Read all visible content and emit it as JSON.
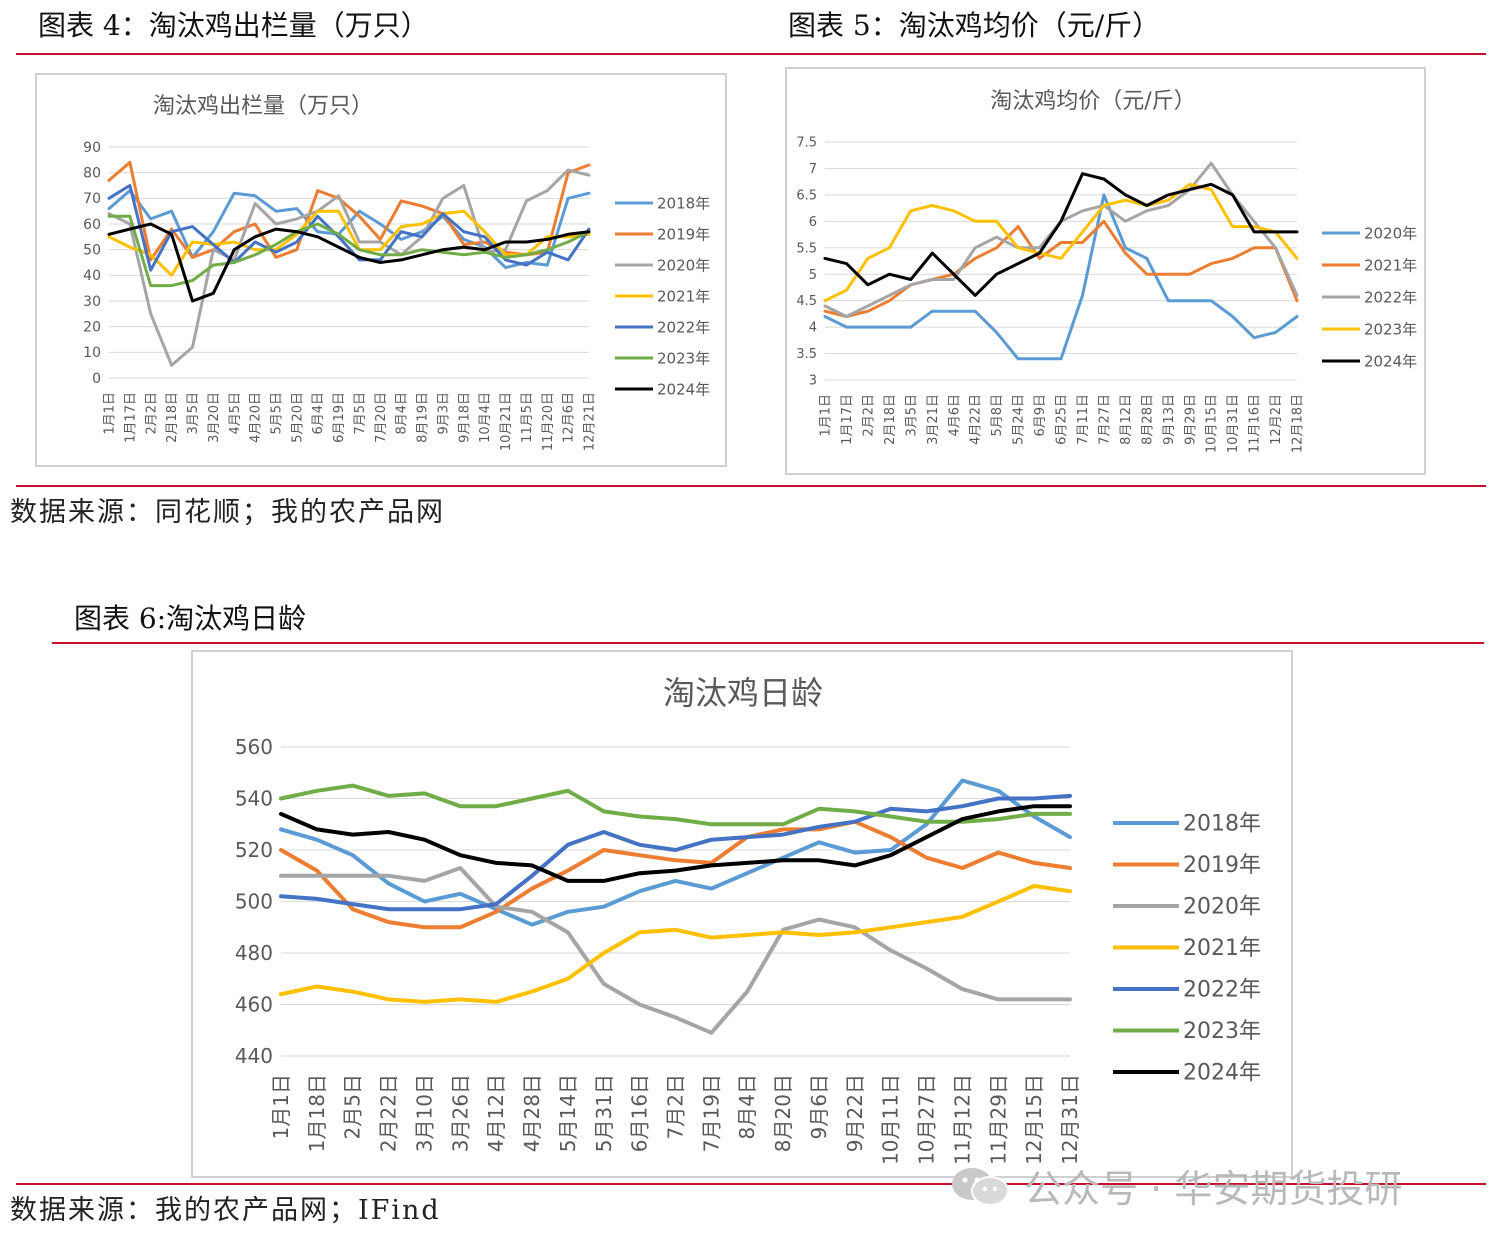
{
  "figures": {
    "fig4": {
      "caption": "图表 4：淘汰鸡出栏量（万只）"
    },
    "fig5": {
      "caption": "图表 5：淘汰鸡均价（元/斤）"
    },
    "fig6": {
      "caption": "图表 6:淘汰鸡日龄"
    }
  },
  "sources": {
    "top": "数据来源：同花顺；我的农产品网",
    "bottom": "数据来源：我的农产品网；IFind"
  },
  "watermark": {
    "text": "公众号 · 华安期货投研",
    "icon": "wechat-icon"
  },
  "chart_data": [
    {
      "id": "chart4",
      "type": "line",
      "title": "淘汰鸡出栏量（万只）",
      "ylim": [
        0,
        90
      ],
      "y_ticks": [
        0,
        10,
        20,
        30,
        40,
        50,
        60,
        70,
        80,
        90
      ],
      "x_labels": [
        "1月1日",
        "1月17日",
        "2月2日",
        "2月18日",
        "3月5日",
        "3月20日",
        "4月5日",
        "4月20日",
        "5月5日",
        "5月20日",
        "6月4日",
        "6月19日",
        "7月5日",
        "7月20日",
        "8月4日",
        "8月19日",
        "9月3日",
        "9月18日",
        "10月4日",
        "10月21日",
        "11月5日",
        "11月20日",
        "12月6日",
        "12月21日"
      ],
      "legend_position": "right",
      "grid": true,
      "series": [
        {
          "name": "2018年",
          "color": "#5b9bd5",
          "values": [
            66,
            73,
            62,
            65,
            47,
            57,
            72,
            71,
            65,
            66,
            57,
            56,
            65,
            60,
            54,
            57,
            63,
            54,
            51,
            43,
            45,
            44,
            70,
            72
          ]
        },
        {
          "name": "2019年",
          "color": "#ed7d31",
          "values": [
            77,
            84,
            46,
            58,
            47,
            50,
            57,
            60,
            47,
            50,
            73,
            70,
            63,
            54,
            69,
            67,
            64,
            52,
            53,
            49,
            48,
            49,
            80,
            83
          ]
        },
        {
          "name": "2020年",
          "color": "#a5a5a5",
          "values": [
            64,
            60,
            25,
            5,
            12,
            50,
            46,
            68,
            60,
            62,
            65,
            71,
            53,
            53,
            48,
            55,
            70,
            75,
            49,
            50,
            69,
            73,
            81,
            79
          ]
        },
        {
          "name": "2021年",
          "color": "#ffc000",
          "values": [
            55,
            51,
            48,
            40,
            53,
            52,
            53,
            50,
            50,
            56,
            65,
            65,
            50,
            50,
            59,
            60,
            64,
            65,
            57,
            48,
            48,
            55,
            55,
            56
          ]
        },
        {
          "name": "2022年",
          "color": "#4472c4",
          "values": [
            70,
            75,
            42,
            57,
            59,
            52,
            45,
            53,
            49,
            53,
            63,
            55,
            46,
            46,
            57,
            55,
            64,
            57,
            55,
            46,
            44,
            49,
            46,
            58
          ]
        },
        {
          "name": "2023年",
          "color": "#70ad47",
          "values": [
            63,
            63,
            36,
            36,
            38,
            44,
            45,
            48,
            52,
            57,
            60,
            56,
            50,
            48,
            48,
            50,
            49,
            48,
            49,
            47,
            48,
            50,
            53,
            57
          ]
        },
        {
          "name": "2024年",
          "color": "#000000",
          "values": [
            56,
            58,
            60,
            56,
            30,
            33,
            50,
            55,
            58,
            57,
            55,
            51,
            47,
            45,
            46,
            48,
            50,
            51,
            50,
            53,
            53,
            54,
            56,
            57
          ]
        }
      ]
    },
    {
      "id": "chart5",
      "type": "line",
      "title": "淘汰鸡均价（元/斤）",
      "ylim": [
        3,
        7.5
      ],
      "y_ticks": [
        3,
        3.5,
        4,
        4.5,
        5,
        5.5,
        6,
        6.5,
        7,
        7.5
      ],
      "x_labels": [
        "1月1日",
        "1月17日",
        "2月2日",
        "2月18日",
        "3月5日",
        "3月21日",
        "4月6日",
        "4月22日",
        "5月8日",
        "5月24日",
        "6月9日",
        "6月25日",
        "7月11日",
        "7月27日",
        "8月12日",
        "8月28日",
        "9月13日",
        "9月29日",
        "10月15日",
        "10月31日",
        "11月16日",
        "12月2日",
        "12月18日"
      ],
      "legend_position": "right",
      "grid": true,
      "series": [
        {
          "name": "2020年",
          "color": "#5b9bd5",
          "values": [
            4.2,
            4.0,
            4.0,
            4.0,
            4.0,
            4.3,
            4.3,
            4.3,
            3.9,
            3.4,
            3.4,
            3.4,
            4.6,
            6.5,
            5.5,
            5.3,
            4.5,
            4.5,
            4.5,
            4.2,
            3.8,
            3.9,
            4.2
          ]
        },
        {
          "name": "2021年",
          "color": "#ed7d31",
          "values": [
            4.3,
            4.2,
            4.3,
            4.5,
            4.8,
            4.9,
            5.0,
            5.3,
            5.5,
            5.9,
            5.3,
            5.6,
            5.6,
            6.0,
            5.4,
            5.0,
            5.0,
            5.0,
            5.2,
            5.3,
            5.5,
            5.5,
            4.5
          ]
        },
        {
          "name": "2022年",
          "color": "#a5a5a5",
          "values": [
            4.4,
            4.2,
            4.4,
            4.6,
            4.8,
            4.9,
            4.9,
            5.5,
            5.7,
            5.5,
            5.5,
            6.0,
            6.2,
            6.3,
            6.0,
            6.2,
            6.3,
            6.6,
            7.1,
            6.5,
            6.0,
            5.5,
            4.6
          ]
        },
        {
          "name": "2023年",
          "color": "#ffc000",
          "values": [
            4.5,
            4.7,
            5.3,
            5.5,
            6.2,
            6.3,
            6.2,
            6.0,
            6.0,
            5.5,
            5.4,
            5.3,
            5.8,
            6.3,
            6.4,
            6.3,
            6.4,
            6.7,
            6.6,
            5.9,
            5.9,
            5.8,
            5.3
          ]
        },
        {
          "name": "2024年",
          "color": "#000000",
          "values": [
            5.3,
            5.2,
            4.8,
            5.0,
            4.9,
            5.4,
            5.0,
            4.6,
            5.0,
            5.2,
            5.4,
            6.0,
            6.9,
            6.8,
            6.5,
            6.3,
            6.5,
            6.6,
            6.7,
            6.5,
            5.8,
            5.8,
            5.8
          ]
        }
      ]
    },
    {
      "id": "chart6",
      "type": "line",
      "title": "淘汰鸡日龄",
      "ylim": [
        440,
        560
      ],
      "y_ticks": [
        440,
        460,
        480,
        500,
        520,
        540,
        560
      ],
      "x_labels": [
        "1月1日",
        "1月18日",
        "2月5日",
        "2月22日",
        "3月10日",
        "3月26日",
        "4月12日",
        "4月28日",
        "5月14日",
        "5月31日",
        "6月16日",
        "7月2日",
        "7月19日",
        "8月4日",
        "8月20日",
        "9月6日",
        "9月22日",
        "10月11日",
        "10月27日",
        "11月12日",
        "11月29日",
        "12月15日",
        "12月31日"
      ],
      "legend_position": "right",
      "grid": true,
      "series": [
        {
          "name": "2018年",
          "color": "#5b9bd5",
          "values": [
            528,
            524,
            518,
            507,
            500,
            503,
            497,
            491,
            496,
            498,
            504,
            508,
            505,
            511,
            517,
            523,
            519,
            520,
            530,
            547,
            543,
            533,
            525
          ]
        },
        {
          "name": "2019年",
          "color": "#ed7d31",
          "values": [
            520,
            512,
            497,
            492,
            490,
            490,
            496,
            505,
            512,
            520,
            518,
            516,
            515,
            525,
            528,
            528,
            531,
            525,
            517,
            513,
            519,
            515,
            513
          ]
        },
        {
          "name": "2020年",
          "color": "#a5a5a5",
          "values": [
            510,
            510,
            510,
            510,
            508,
            513,
            498,
            496,
            488,
            468,
            460,
            455,
            449,
            465,
            489,
            493,
            490,
            481,
            474,
            466,
            462,
            462,
            462
          ]
        },
        {
          "name": "2021年",
          "color": "#ffc000",
          "values": [
            464,
            467,
            465,
            462,
            461,
            462,
            461,
            465,
            470,
            480,
            488,
            489,
            486,
            487,
            488,
            487,
            488,
            490,
            492,
            494,
            500,
            506,
            504
          ]
        },
        {
          "name": "2022年",
          "color": "#4472c4",
          "values": [
            502,
            501,
            499,
            497,
            497,
            497,
            499,
            510,
            522,
            527,
            522,
            520,
            524,
            525,
            526,
            529,
            531,
            536,
            535,
            537,
            540,
            540,
            541
          ]
        },
        {
          "name": "2023年",
          "color": "#70ad47",
          "values": [
            540,
            543,
            545,
            541,
            542,
            537,
            537,
            540,
            543,
            535,
            533,
            532,
            530,
            530,
            530,
            536,
            535,
            533,
            531,
            531,
            532,
            534,
            534
          ]
        },
        {
          "name": "2024年",
          "color": "#000000",
          "values": [
            534,
            528,
            526,
            527,
            524,
            518,
            515,
            514,
            508,
            508,
            511,
            512,
            514,
            515,
            516,
            516,
            514,
            518,
            525,
            532,
            535,
            537,
            537
          ]
        }
      ]
    }
  ]
}
